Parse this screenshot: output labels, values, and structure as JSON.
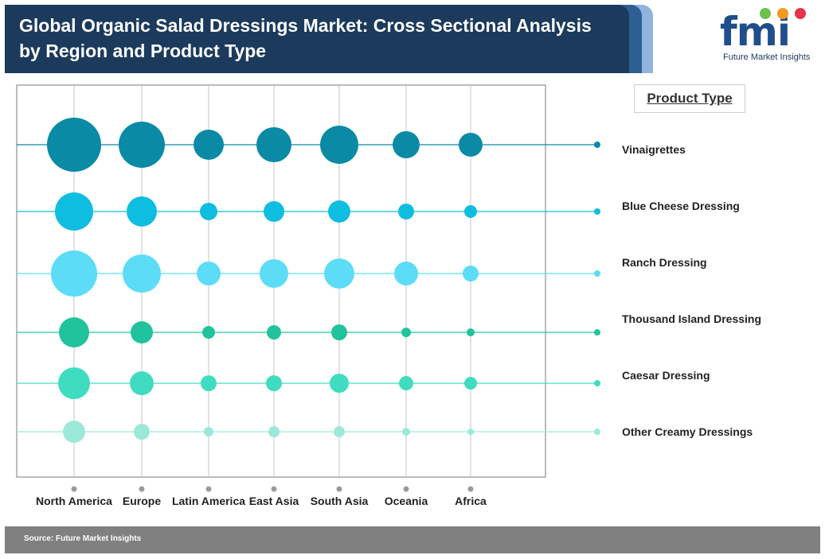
{
  "header": {
    "title": "Global Organic Salad Dressings Market: Cross Sectional Analysis by Region and Product Type"
  },
  "logo": {
    "text": "fmi",
    "subtitle": "Future Market Insights"
  },
  "legend": {
    "title": "Product Type"
  },
  "footer": {
    "source": "Source: Future Market Insights"
  },
  "colors": {
    "header_bg": "#1b3a5c",
    "series": [
      "#0b8aa5",
      "#0fbde0",
      "#5cdcf7",
      "#20c39c",
      "#40dcc0",
      "#9ce9da"
    ]
  },
  "chart_data": {
    "type": "bubble",
    "title": "Global Organic Salad Dressings Market: Cross Sectional Analysis by Region and Product Type",
    "x_categories": [
      "North America",
      "Europe",
      "Latin America",
      "East Asia",
      "South Asia",
      "Oceania",
      "Africa"
    ],
    "y_categories": [
      "Vinaigrettes",
      "Blue Cheese Dressing",
      "Ranch Dressing",
      "Thousand Island Dressing",
      "Caesar Dressing",
      "Other Creamy Dressings"
    ],
    "series": [
      {
        "name": "Vinaigrettes",
        "sizes": [
          34,
          29,
          19,
          22,
          24,
          17,
          15
        ]
      },
      {
        "name": "Blue Cheese Dressing",
        "sizes": [
          24,
          19,
          11,
          13,
          14,
          10,
          8
        ]
      },
      {
        "name": "Ranch Dressing",
        "sizes": [
          29,
          24,
          15,
          18,
          19,
          15,
          10
        ]
      },
      {
        "name": "Thousand Island Dressing",
        "sizes": [
          19,
          14,
          8,
          9,
          10,
          6,
          5
        ]
      },
      {
        "name": "Caesar Dressing",
        "sizes": [
          20,
          15,
          10,
          10,
          12,
          9,
          8
        ]
      },
      {
        "name": "Other Creamy Dressings",
        "sizes": [
          14,
          10,
          6,
          7,
          7,
          5,
          4
        ]
      }
    ],
    "grid": true,
    "legend_position": "right"
  }
}
